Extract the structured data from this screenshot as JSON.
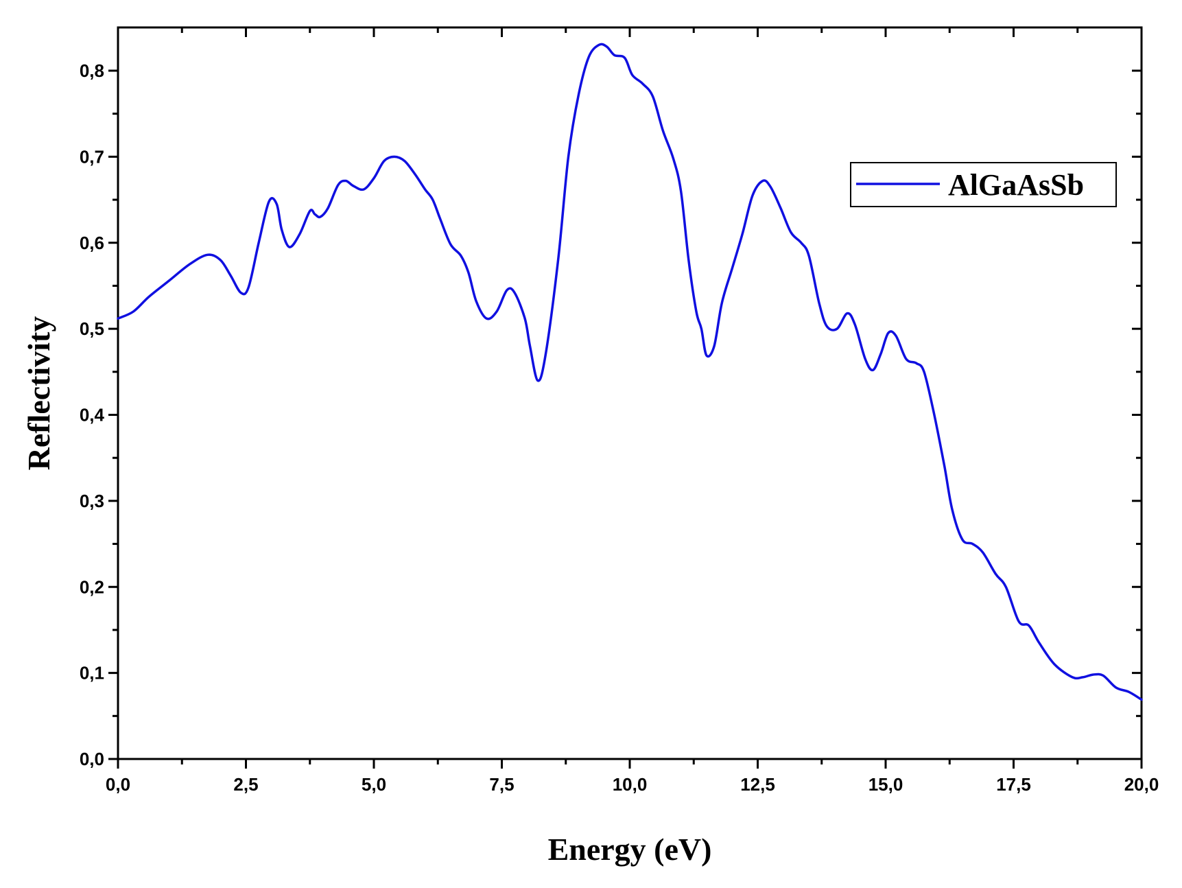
{
  "chart_data": {
    "type": "line",
    "title": "",
    "xlabel": "Energy (eV)",
    "ylabel": "Reflectivity",
    "xlim": [
      0,
      20
    ],
    "ylim": [
      0,
      0.85
    ],
    "x_ticks": [
      0,
      2.5,
      5,
      7.5,
      10,
      12.5,
      15,
      17.5,
      20
    ],
    "x_tick_labels": [
      "0,0",
      "2,5",
      "5,0",
      "7,5",
      "10,0",
      "12,5",
      "15,0",
      "17,5",
      "20,0"
    ],
    "y_ticks": [
      0,
      0.1,
      0.2,
      0.3,
      0.4,
      0.5,
      0.6,
      0.7,
      0.8
    ],
    "y_tick_labels": [
      "0,0",
      "0,1",
      "0,2",
      "0,3",
      "0,4",
      "0,5",
      "0,6",
      "0,7",
      "0,8"
    ],
    "grid": false,
    "legend": {
      "position": "top-right",
      "entries": [
        "AlGaAsSb"
      ]
    },
    "series": [
      {
        "name": "AlGaAsSb",
        "color": "#1010e0",
        "points": [
          [
            0.0,
            0.512
          ],
          [
            0.3,
            0.52
          ],
          [
            0.6,
            0.537
          ],
          [
            1.0,
            0.556
          ],
          [
            1.4,
            0.575
          ],
          [
            1.75,
            0.586
          ],
          [
            2.0,
            0.58
          ],
          [
            2.2,
            0.562
          ],
          [
            2.4,
            0.542
          ],
          [
            2.55,
            0.548
          ],
          [
            2.75,
            0.6
          ],
          [
            2.95,
            0.648
          ],
          [
            3.1,
            0.645
          ],
          [
            3.2,
            0.615
          ],
          [
            3.35,
            0.595
          ],
          [
            3.55,
            0.61
          ],
          [
            3.75,
            0.637
          ],
          [
            3.85,
            0.633
          ],
          [
            3.95,
            0.63
          ],
          [
            4.1,
            0.64
          ],
          [
            4.3,
            0.667
          ],
          [
            4.45,
            0.672
          ],
          [
            4.6,
            0.666
          ],
          [
            4.8,
            0.662
          ],
          [
            5.0,
            0.675
          ],
          [
            5.2,
            0.695
          ],
          [
            5.4,
            0.7
          ],
          [
            5.6,
            0.695
          ],
          [
            5.8,
            0.68
          ],
          [
            6.0,
            0.662
          ],
          [
            6.15,
            0.65
          ],
          [
            6.3,
            0.627
          ],
          [
            6.5,
            0.598
          ],
          [
            6.7,
            0.585
          ],
          [
            6.85,
            0.565
          ],
          [
            7.0,
            0.532
          ],
          [
            7.2,
            0.512
          ],
          [
            7.4,
            0.52
          ],
          [
            7.6,
            0.545
          ],
          [
            7.75,
            0.542
          ],
          [
            7.95,
            0.512
          ],
          [
            8.05,
            0.48
          ],
          [
            8.2,
            0.44
          ],
          [
            8.35,
            0.468
          ],
          [
            8.6,
            0.58
          ],
          [
            8.8,
            0.7
          ],
          [
            9.0,
            0.772
          ],
          [
            9.2,
            0.816
          ],
          [
            9.4,
            0.83
          ],
          [
            9.55,
            0.828
          ],
          [
            9.7,
            0.818
          ],
          [
            9.9,
            0.815
          ],
          [
            10.05,
            0.795
          ],
          [
            10.25,
            0.785
          ],
          [
            10.45,
            0.77
          ],
          [
            10.65,
            0.73
          ],
          [
            10.85,
            0.698
          ],
          [
            11.0,
            0.66
          ],
          [
            11.15,
            0.58
          ],
          [
            11.3,
            0.52
          ],
          [
            11.4,
            0.5
          ],
          [
            11.5,
            0.469
          ],
          [
            11.65,
            0.48
          ],
          [
            11.8,
            0.53
          ],
          [
            12.0,
            0.57
          ],
          [
            12.2,
            0.61
          ],
          [
            12.4,
            0.655
          ],
          [
            12.6,
            0.672
          ],
          [
            12.75,
            0.665
          ],
          [
            12.95,
            0.64
          ],
          [
            13.15,
            0.612
          ],
          [
            13.35,
            0.6
          ],
          [
            13.5,
            0.585
          ],
          [
            13.7,
            0.53
          ],
          [
            13.85,
            0.503
          ],
          [
            14.05,
            0.5
          ],
          [
            14.25,
            0.518
          ],
          [
            14.4,
            0.505
          ],
          [
            14.6,
            0.465
          ],
          [
            14.75,
            0.452
          ],
          [
            14.9,
            0.47
          ],
          [
            15.05,
            0.495
          ],
          [
            15.2,
            0.492
          ],
          [
            15.4,
            0.465
          ],
          [
            15.6,
            0.46
          ],
          [
            15.75,
            0.45
          ],
          [
            15.95,
            0.4
          ],
          [
            16.15,
            0.34
          ],
          [
            16.3,
            0.29
          ],
          [
            16.5,
            0.255
          ],
          [
            16.7,
            0.25
          ],
          [
            16.9,
            0.24
          ],
          [
            17.15,
            0.215
          ],
          [
            17.35,
            0.2
          ],
          [
            17.6,
            0.16
          ],
          [
            17.8,
            0.155
          ],
          [
            18.0,
            0.135
          ],
          [
            18.3,
            0.11
          ],
          [
            18.65,
            0.095
          ],
          [
            18.85,
            0.095
          ],
          [
            19.05,
            0.098
          ],
          [
            19.25,
            0.097
          ],
          [
            19.5,
            0.083
          ],
          [
            19.75,
            0.078
          ],
          [
            20.0,
            0.069
          ]
        ]
      }
    ]
  }
}
